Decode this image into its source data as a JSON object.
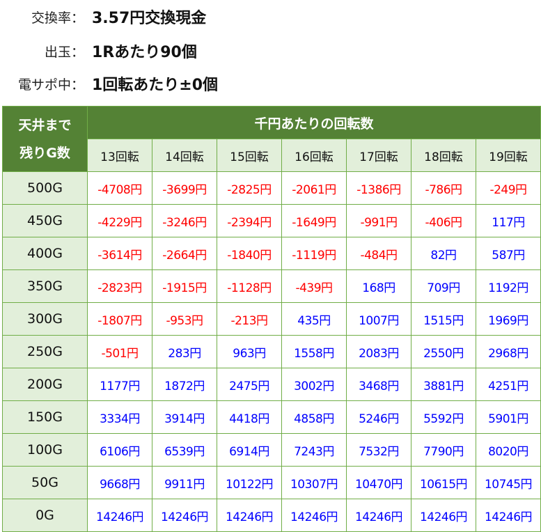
{
  "info": [
    {
      "label": "交換率：",
      "value": "3.57円交換現金"
    },
    {
      "label": "出玉：",
      "value": "1Rあたり90個"
    },
    {
      "label": "電サポ中：",
      "value": "1回転あたり±0個"
    }
  ],
  "table": {
    "corner_label_1": "天井まで",
    "corner_label_2": "残りG数",
    "group_header": "千円あたりの回転数",
    "columns": [
      "13回転",
      "14回転",
      "15回転",
      "16回転",
      "17回転",
      "18回転",
      "19回転"
    ],
    "colors": {
      "header": "#548235",
      "header_light": "#e2efda",
      "border": "#70ad47",
      "negative": "#ff0000",
      "positive": "#0000ff"
    },
    "rows": [
      {
        "label": "500G",
        "values": [
          "-4708円",
          "-3699円",
          "-2825円",
          "-2061円",
          "-1386円",
          "-786円",
          "-249円"
        ]
      },
      {
        "label": "450G",
        "values": [
          "-4229円",
          "-3246円",
          "-2394円",
          "-1649円",
          "-991円",
          "-406円",
          "117円"
        ]
      },
      {
        "label": "400G",
        "values": [
          "-3614円",
          "-2664円",
          "-1840円",
          "-1119円",
          "-484円",
          "82円",
          "587円"
        ]
      },
      {
        "label": "350G",
        "values": [
          "-2823円",
          "-1915円",
          "-1128円",
          "-439円",
          "168円",
          "709円",
          "1192円"
        ]
      },
      {
        "label": "300G",
        "values": [
          "-1807円",
          "-953円",
          "-213円",
          "435円",
          "1007円",
          "1515円",
          "1969円"
        ]
      },
      {
        "label": "250G",
        "values": [
          "-501円",
          "283円",
          "963円",
          "1558円",
          "2083円",
          "2550円",
          "2968円"
        ]
      },
      {
        "label": "200G",
        "values": [
          "1177円",
          "1872円",
          "2475円",
          "3002円",
          "3468円",
          "3881円",
          "4251円"
        ]
      },
      {
        "label": "150G",
        "values": [
          "3334円",
          "3914円",
          "4418円",
          "4858円",
          "5246円",
          "5592円",
          "5901円"
        ]
      },
      {
        "label": "100G",
        "values": [
          "6106円",
          "6539円",
          "6914円",
          "7243円",
          "7532円",
          "7790円",
          "8020円"
        ]
      },
      {
        "label": "50G",
        "values": [
          "9668円",
          "9911円",
          "10122円",
          "10307円",
          "10470円",
          "10615円",
          "10745円"
        ]
      },
      {
        "label": "0G",
        "values": [
          "14246円",
          "14246円",
          "14246円",
          "14246円",
          "14246円",
          "14246円",
          "14246円"
        ]
      }
    ]
  }
}
